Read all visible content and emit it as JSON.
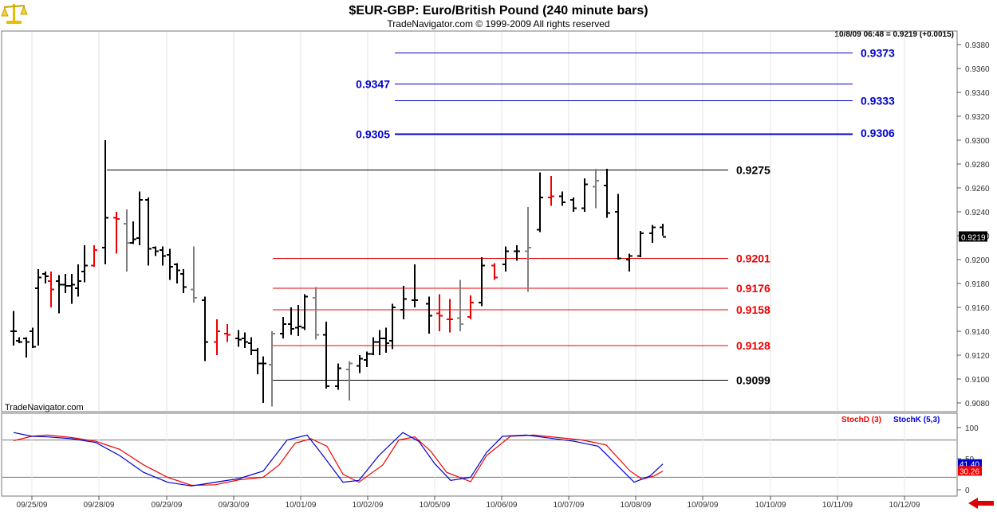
{
  "header": {
    "title": "$EUR-GBP:  Euro/British Pound  (240 minute bars)",
    "copyright": "TradeNavigator.com © 1999-2009 All rights reserved",
    "last_quote": "10/8/09 06:48 = 0.9219 (+0.0015)"
  },
  "watermark": "TradeNavigator.com",
  "logo_icon": "scales-icon",
  "colors": {
    "up": "#000000",
    "down": "#ee0000",
    "neutral": "#808080",
    "blue": "#0000cc",
    "red": "#ee0000"
  },
  "chart_data": [
    {
      "type": "ohlc-bar",
      "title": "$EUR-GBP:  Euro/British Pound  (240 minute bars)",
      "ylim": [
        0.9075,
        0.9395
      ],
      "y_ticks": [
        "0.9380",
        "0.9360",
        "0.9340",
        "0.9320",
        "0.9300",
        "0.9280",
        "0.9260",
        "0.9240",
        "0.9220",
        "0.9200",
        "0.9180",
        "0.9160",
        "0.9140",
        "0.9120",
        "0.9100",
        "0.9080"
      ],
      "last_price_label": "0.9219",
      "x_tick_labels": [
        "09/25/09",
        "09/28/09",
        "09/29/09",
        "09/30/09",
        "10/01/09",
        "10/02/09",
        "10/05/09",
        "10/06/09",
        "10/07/09",
        "10/08/09",
        "10/09/09",
        "10/10/09",
        "10/11/09",
        "10/12/09"
      ],
      "bars": [
        {
          "x": 17,
          "o": 0.914,
          "h": 0.9157,
          "l": 0.9128,
          "c": 0.914,
          "color": "black"
        },
        {
          "x": 24,
          "o": 0.9132,
          "h": 0.9135,
          "l": 0.913,
          "c": 0.9131,
          "color": "black"
        },
        {
          "x": 33,
          "o": 0.9134,
          "h": 0.9135,
          "l": 0.9118,
          "c": 0.9131,
          "color": "black"
        },
        {
          "x": 41,
          "o": 0.914,
          "h": 0.9143,
          "l": 0.9126,
          "c": 0.9127,
          "color": "black"
        },
        {
          "x": 48,
          "o": 0.9176,
          "h": 0.9192,
          "l": 0.9128,
          "c": 0.9185,
          "color": "black"
        },
        {
          "x": 57,
          "o": 0.9188,
          "h": 0.919,
          "l": 0.918,
          "c": 0.9186,
          "color": "black"
        },
        {
          "x": 64,
          "o": 0.9182,
          "h": 0.919,
          "l": 0.916,
          "c": 0.9175,
          "color": "red"
        },
        {
          "x": 74,
          "o": 0.9182,
          "h": 0.9187,
          "l": 0.9155,
          "c": 0.9179,
          "color": "black"
        },
        {
          "x": 82,
          "o": 0.9179,
          "h": 0.9188,
          "l": 0.9172,
          "c": 0.9178,
          "color": "black"
        },
        {
          "x": 90,
          "o": 0.9178,
          "h": 0.9188,
          "l": 0.9163,
          "c": 0.9179,
          "color": "black"
        },
        {
          "x": 98,
          "o": 0.9176,
          "h": 0.9196,
          "l": 0.9169,
          "c": 0.9182,
          "color": "black"
        },
        {
          "x": 106,
          "o": 0.919,
          "h": 0.9212,
          "l": 0.9181,
          "c": 0.9195,
          "color": "black"
        },
        {
          "x": 118,
          "o": 0.9195,
          "h": 0.9212,
          "l": 0.9194,
          "c": 0.9208,
          "color": "red"
        },
        {
          "x": 132,
          "o": 0.921,
          "h": 0.93,
          "l": 0.9196,
          "c": 0.9235,
          "color": "black"
        },
        {
          "x": 146,
          "o": 0.9235,
          "h": 0.924,
          "l": 0.9205,
          "c": 0.9234,
          "color": "red"
        },
        {
          "x": 159,
          "o": 0.923,
          "h": 0.9242,
          "l": 0.919,
          "c": 0.9214,
          "color": "gray"
        },
        {
          "x": 167,
          "o": 0.9214,
          "h": 0.9232,
          "l": 0.9213,
          "c": 0.9217,
          "color": "black"
        },
        {
          "x": 175,
          "o": 0.9218,
          "h": 0.9257,
          "l": 0.9212,
          "c": 0.925,
          "color": "black"
        },
        {
          "x": 186,
          "o": 0.925,
          "h": 0.9252,
          "l": 0.9195,
          "c": 0.9209,
          "color": "black"
        },
        {
          "x": 195,
          "o": 0.921,
          "h": 0.9211,
          "l": 0.9203,
          "c": 0.9207,
          "color": "black"
        },
        {
          "x": 204,
          "o": 0.9208,
          "h": 0.9211,
          "l": 0.9195,
          "c": 0.9203,
          "color": "black"
        },
        {
          "x": 213,
          "o": 0.9204,
          "h": 0.9209,
          "l": 0.9183,
          "c": 0.9194,
          "color": "black"
        },
        {
          "x": 222,
          "o": 0.9196,
          "h": 0.9197,
          "l": 0.918,
          "c": 0.9191,
          "color": "black"
        },
        {
          "x": 230,
          "o": 0.9188,
          "h": 0.9192,
          "l": 0.9172,
          "c": 0.9177,
          "color": "black"
        },
        {
          "x": 243,
          "o": 0.9175,
          "h": 0.9211,
          "l": 0.9164,
          "c": 0.9168,
          "color": "gray"
        },
        {
          "x": 257,
          "o": 0.9166,
          "h": 0.9169,
          "l": 0.9115,
          "c": 0.9131,
          "color": "black"
        },
        {
          "x": 272,
          "o": 0.9131,
          "h": 0.915,
          "l": 0.912,
          "c": 0.914,
          "color": "red"
        },
        {
          "x": 285,
          "o": 0.9138,
          "h": 0.9146,
          "l": 0.9131,
          "c": 0.9137,
          "color": "red"
        },
        {
          "x": 299,
          "o": 0.9134,
          "h": 0.9141,
          "l": 0.9127,
          "c": 0.9133,
          "color": "black"
        },
        {
          "x": 307,
          "o": 0.9134,
          "h": 0.9139,
          "l": 0.9126,
          "c": 0.9131,
          "color": "black"
        },
        {
          "x": 315,
          "o": 0.913,
          "h": 0.9135,
          "l": 0.912,
          "c": 0.9124,
          "color": "black"
        },
        {
          "x": 323,
          "o": 0.9124,
          "h": 0.9126,
          "l": 0.9104,
          "c": 0.9113,
          "color": "black"
        },
        {
          "x": 330,
          "o": 0.9113,
          "h": 0.9119,
          "l": 0.908,
          "c": 0.9113,
          "color": "black"
        },
        {
          "x": 341,
          "o": 0.9112,
          "h": 0.914,
          "l": 0.9077,
          "c": 0.9138,
          "color": "gray"
        },
        {
          "x": 355,
          "o": 0.9138,
          "h": 0.9152,
          "l": 0.9134,
          "c": 0.9146,
          "color": "black"
        },
        {
          "x": 365,
          "o": 0.9146,
          "h": 0.916,
          "l": 0.9137,
          "c": 0.9142,
          "color": "black"
        },
        {
          "x": 374,
          "o": 0.9143,
          "h": 0.9162,
          "l": 0.9136,
          "c": 0.9144,
          "color": "black"
        },
        {
          "x": 382,
          "o": 0.9143,
          "h": 0.9171,
          "l": 0.9141,
          "c": 0.9169,
          "color": "black"
        },
        {
          "x": 396,
          "o": 0.9168,
          "h": 0.9177,
          "l": 0.9133,
          "c": 0.9137,
          "color": "gray"
        },
        {
          "x": 409,
          "o": 0.9137,
          "h": 0.9148,
          "l": 0.9092,
          "c": 0.9094,
          "color": "black"
        },
        {
          "x": 424,
          "o": 0.9094,
          "h": 0.9113,
          "l": 0.9091,
          "c": 0.9109,
          "color": "black"
        },
        {
          "x": 438,
          "o": 0.9108,
          "h": 0.9115,
          "l": 0.9082,
          "c": 0.9113,
          "color": "gray"
        },
        {
          "x": 451,
          "o": 0.9111,
          "h": 0.912,
          "l": 0.9105,
          "c": 0.9117,
          "color": "black"
        },
        {
          "x": 460,
          "o": 0.9116,
          "h": 0.9123,
          "l": 0.911,
          "c": 0.9121,
          "color": "black"
        },
        {
          "x": 468,
          "o": 0.9121,
          "h": 0.9135,
          "l": 0.912,
          "c": 0.9131,
          "color": "black"
        },
        {
          "x": 476,
          "o": 0.9131,
          "h": 0.9141,
          "l": 0.912,
          "c": 0.9134,
          "color": "black"
        },
        {
          "x": 484,
          "o": 0.9134,
          "h": 0.9143,
          "l": 0.9122,
          "c": 0.913,
          "color": "black"
        },
        {
          "x": 492,
          "o": 0.9132,
          "h": 0.9163,
          "l": 0.9125,
          "c": 0.916,
          "color": "black"
        },
        {
          "x": 506,
          "o": 0.9158,
          "h": 0.9178,
          "l": 0.915,
          "c": 0.9167,
          "color": "black"
        },
        {
          "x": 520,
          "o": 0.9166,
          "h": 0.9196,
          "l": 0.916,
          "c": 0.9166,
          "color": "black"
        },
        {
          "x": 538,
          "o": 0.9163,
          "h": 0.9169,
          "l": 0.9138,
          "c": 0.9153,
          "color": "black"
        },
        {
          "x": 551,
          "o": 0.9155,
          "h": 0.9171,
          "l": 0.914,
          "c": 0.9153,
          "color": "red"
        },
        {
          "x": 564,
          "o": 0.915,
          "h": 0.9167,
          "l": 0.9139,
          "c": 0.915,
          "color": "red"
        },
        {
          "x": 577,
          "o": 0.9151,
          "h": 0.9183,
          "l": 0.914,
          "c": 0.9146,
          "color": "gray"
        },
        {
          "x": 590,
          "o": 0.9152,
          "h": 0.917,
          "l": 0.915,
          "c": 0.9164,
          "color": "red"
        },
        {
          "x": 604,
          "o": 0.9164,
          "h": 0.9202,
          "l": 0.9161,
          "c": 0.9195,
          "color": "black"
        },
        {
          "x": 620,
          "o": 0.9195,
          "h": 0.9197,
          "l": 0.9183,
          "c": 0.9185,
          "color": "red"
        },
        {
          "x": 634,
          "o": 0.9196,
          "h": 0.9211,
          "l": 0.919,
          "c": 0.9207,
          "color": "black"
        },
        {
          "x": 648,
          "o": 0.9207,
          "h": 0.9212,
          "l": 0.9199,
          "c": 0.9207,
          "color": "black"
        },
        {
          "x": 662,
          "o": 0.9207,
          "h": 0.9244,
          "l": 0.9173,
          "c": 0.921,
          "color": "gray"
        },
        {
          "x": 677,
          "o": 0.9225,
          "h": 0.9273,
          "l": 0.9223,
          "c": 0.9252,
          "color": "black"
        },
        {
          "x": 691,
          "o": 0.9252,
          "h": 0.927,
          "l": 0.9245,
          "c": 0.9253,
          "color": "red"
        },
        {
          "x": 705,
          "o": 0.9253,
          "h": 0.9257,
          "l": 0.9245,
          "c": 0.9248,
          "color": "black"
        },
        {
          "x": 719,
          "o": 0.925,
          "h": 0.9252,
          "l": 0.924,
          "c": 0.9243,
          "color": "black"
        },
        {
          "x": 733,
          "o": 0.9243,
          "h": 0.9268,
          "l": 0.924,
          "c": 0.9263,
          "color": "black"
        },
        {
          "x": 747,
          "o": 0.9261,
          "h": 0.9276,
          "l": 0.9243,
          "c": 0.9266,
          "color": "gray"
        },
        {
          "x": 761,
          "o": 0.9262,
          "h": 0.9276,
          "l": 0.9235,
          "c": 0.9239,
          "color": "black"
        },
        {
          "x": 775,
          "o": 0.924,
          "h": 0.9255,
          "l": 0.92,
          "c": 0.9201,
          "color": "black"
        },
        {
          "x": 789,
          "o": 0.92,
          "h": 0.9205,
          "l": 0.919,
          "c": 0.9203,
          "color": "black"
        },
        {
          "x": 803,
          "o": 0.9203,
          "h": 0.9224,
          "l": 0.9202,
          "c": 0.9222,
          "color": "black"
        },
        {
          "x": 818,
          "o": 0.9222,
          "h": 0.9229,
          "l": 0.9214,
          "c": 0.9227,
          "color": "black"
        },
        {
          "x": 831,
          "o": 0.9227,
          "h": 0.923,
          "l": 0.922,
          "c": 0.9219,
          "color": "black"
        }
      ],
      "levels": [
        {
          "value": 0.9373,
          "label": "0.9373",
          "color": "blue",
          "x1": 495,
          "x2": 1069,
          "label_side": "right",
          "weight": 1
        },
        {
          "value": 0.9347,
          "label": "0.9347",
          "color": "blue",
          "x1": 495,
          "x2": 1069,
          "label_side": "left",
          "weight": 1
        },
        {
          "value": 0.9333,
          "label": "0.9333",
          "color": "blue",
          "x1": 495,
          "x2": 1069,
          "label_side": "right",
          "weight": 1
        },
        {
          "value": 0.9305,
          "label": "0.9305",
          "color": "blue",
          "x1": 495,
          "x2": 1069,
          "label_side": "left",
          "weight": 2
        },
        {
          "value": 0.9306,
          "label": "0.9306",
          "color": "blue",
          "x1": 495,
          "x2": 1069,
          "label_side": "right",
          "weight": 0
        },
        {
          "value": 0.9275,
          "label": "0.9275",
          "color": "black",
          "x1": 134,
          "x2": 913,
          "label_side": "right",
          "weight": 1
        },
        {
          "value": 0.9201,
          "label": "0.9201",
          "color": "red",
          "x1": 342,
          "x2": 913,
          "label_side": "right",
          "weight": 1
        },
        {
          "value": 0.9176,
          "label": "0.9176",
          "color": "red",
          "x1": 342,
          "x2": 913,
          "label_side": "right",
          "weight": 1
        },
        {
          "value": 0.9158,
          "label": "0.9158",
          "color": "red",
          "x1": 342,
          "x2": 913,
          "label_side": "right",
          "weight": 1
        },
        {
          "value": 0.9128,
          "label": "0.9128",
          "color": "red",
          "x1": 342,
          "x2": 913,
          "label_side": "right",
          "weight": 1
        },
        {
          "value": 0.9099,
          "label": "0.9099",
          "color": "black",
          "x1": 342,
          "x2": 913,
          "label_side": "right",
          "weight": 1
        }
      ]
    },
    {
      "type": "line",
      "title": "",
      "ylim": [
        -5,
        110
      ],
      "y_ticks": [
        "100",
        "50",
        "0"
      ],
      "reference_lines": [
        80,
        20
      ],
      "series": [
        {
          "name": "StochD (3)",
          "color": "red",
          "points": [
            [
              17,
              79
            ],
            [
              40,
              86
            ],
            [
              60,
              88
            ],
            [
              90,
              84
            ],
            [
              120,
              78
            ],
            [
              150,
              65
            ],
            [
              180,
              40
            ],
            [
              210,
              20
            ],
            [
              240,
              7
            ],
            [
              270,
              8
            ],
            [
              300,
              16
            ],
            [
              330,
              20
            ],
            [
              350,
              40
            ],
            [
              370,
              75
            ],
            [
              390,
              82
            ],
            [
              410,
              70
            ],
            [
              430,
              25
            ],
            [
              450,
              12
            ],
            [
              480,
              40
            ],
            [
              500,
              80
            ],
            [
              520,
              85
            ],
            [
              540,
              62
            ],
            [
              560,
              28
            ],
            [
              590,
              13
            ],
            [
              610,
              55
            ],
            [
              640,
              86
            ],
            [
              670,
              88
            ],
            [
              700,
              84
            ],
            [
              730,
              80
            ],
            [
              760,
              72
            ],
            [
              790,
              30
            ],
            [
              805,
              17
            ],
            [
              820,
              22
            ],
            [
              831,
              30
            ]
          ]
        },
        {
          "name": "StochK (5,3)",
          "color": "blue",
          "points": [
            [
              17,
              92
            ],
            [
              40,
              86
            ],
            [
              60,
              85
            ],
            [
              90,
              82
            ],
            [
              120,
              76
            ],
            [
              150,
              55
            ],
            [
              180,
              28
            ],
            [
              210,
              12
            ],
            [
              240,
              6
            ],
            [
              270,
              12
            ],
            [
              300,
              18
            ],
            [
              330,
              30
            ],
            [
              360,
              80
            ],
            [
              385,
              88
            ],
            [
              405,
              55
            ],
            [
              430,
              12
            ],
            [
              450,
              15
            ],
            [
              475,
              55
            ],
            [
              505,
              92
            ],
            [
              525,
              78
            ],
            [
              545,
              42
            ],
            [
              565,
              15
            ],
            [
              590,
              20
            ],
            [
              610,
              60
            ],
            [
              630,
              86
            ],
            [
              660,
              88
            ],
            [
              690,
              83
            ],
            [
              720,
              78
            ],
            [
              750,
              70
            ],
            [
              775,
              38
            ],
            [
              795,
              12
            ],
            [
              815,
              22
            ],
            [
              831,
              41.4
            ]
          ]
        }
      ],
      "value_labels": [
        "41.40",
        "30.26"
      ]
    }
  ]
}
